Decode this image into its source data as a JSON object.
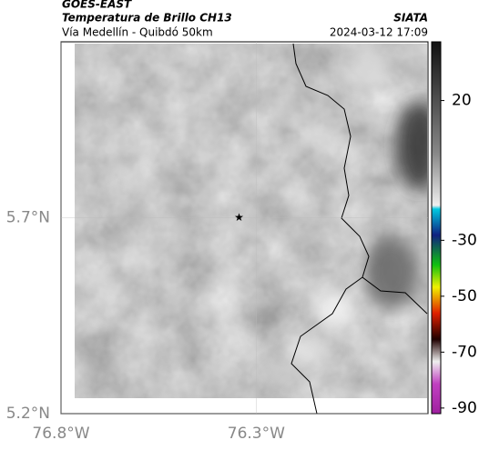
{
  "header": {
    "title": "GOES-EAST",
    "subtitle": "Temperatura de Brillo CH13",
    "region": "Vía Medellín - Quibdó 50km",
    "source": "SIATA",
    "timestamp": "2024-03-12 17:09"
  },
  "map": {
    "xlim": [
      -76.8,
      -75.86
    ],
    "ylim": [
      5.2,
      6.15
    ],
    "xticks": [
      {
        "value": -76.8,
        "label": "76.8°W"
      },
      {
        "value": -76.3,
        "label": "76.3°W"
      }
    ],
    "yticks": [
      {
        "value": 5.2,
        "label": "5.2°N"
      },
      {
        "value": 5.7,
        "label": "5.7°N"
      }
    ],
    "marker": {
      "lon": -76.344,
      "lat": 5.7
    }
  },
  "colorbar": {
    "lim": [
      -92,
      41
    ],
    "ticks": [
      20,
      -30,
      -50,
      -70,
      -90
    ]
  }
}
